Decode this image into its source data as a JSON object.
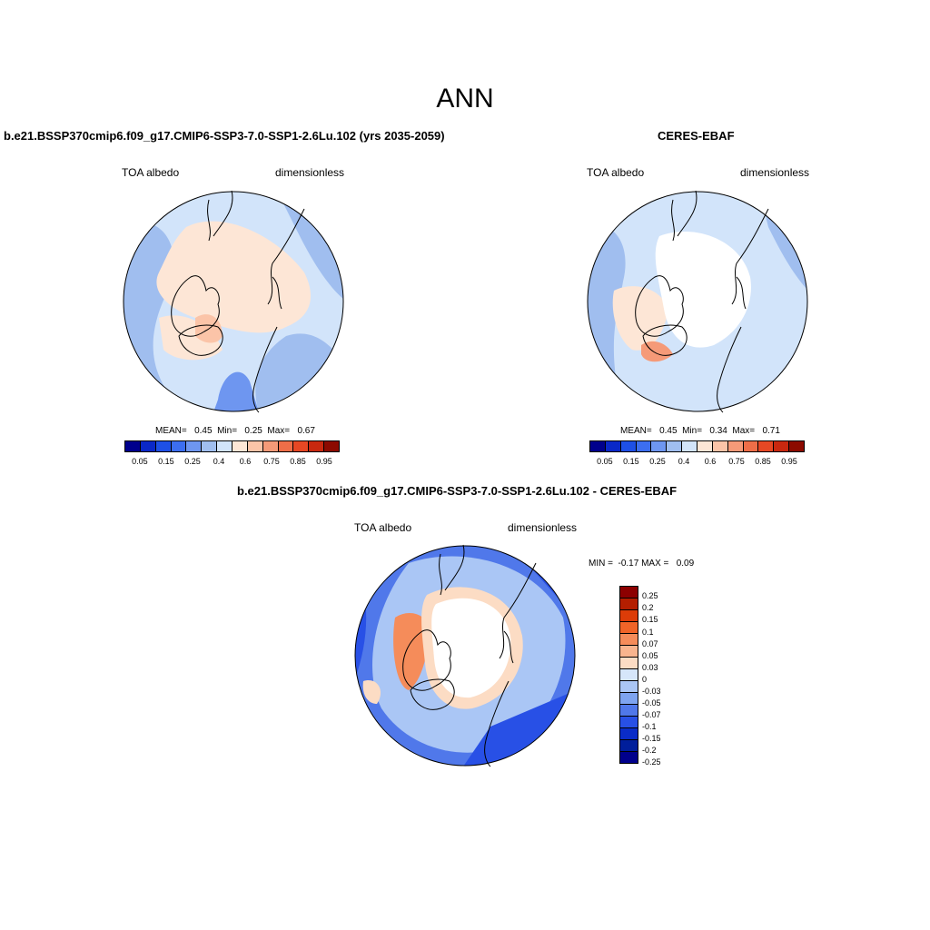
{
  "title": "ANN",
  "panels": {
    "model": {
      "title": "b.e21.BSSP370cmip6.f09_g17.CMIP6-SSP3-7.0-SSP1-2.6Lu.102 (yrs 2035-2059)",
      "variable": "TOA albedo",
      "units": "dimensionless",
      "stats": "MEAN=   0.45  Min=   0.25  Max=   0.67"
    },
    "obs": {
      "title": "CERES-EBAF",
      "variable": "TOA albedo",
      "units": "dimensionless",
      "stats": "MEAN=   0.45  Min=   0.34  Max=   0.71"
    },
    "diff": {
      "title": "b.e21.BSSP370cmip6.f09_g17.CMIP6-SSP3-7.0-SSP1-2.6Lu.102 - CERES-EBAF",
      "variable": "TOA albedo",
      "units": "dimensionless",
      "stats": "MIN =  -0.17 MAX =   0.09"
    }
  },
  "abs_colorbar": {
    "colors": [
      "#00008c",
      "#0a28c8",
      "#1e50e6",
      "#3c6ef0",
      "#6e96f0",
      "#a0beef",
      "#d2e4fa",
      "#fde6d6",
      "#fbc4a8",
      "#f59a78",
      "#ee6e48",
      "#e64824",
      "#c8280f",
      "#8c0a00"
    ],
    "ticks": [
      "0.05",
      "0.15",
      "0.25",
      "0.4",
      "0.6",
      "0.75",
      "0.85",
      "0.95"
    ]
  },
  "diff_colorbar": {
    "colors": [
      "#8c0000",
      "#b41e00",
      "#dc3c08",
      "#f06428",
      "#f58c5a",
      "#f8b48e",
      "#fcdcc4",
      "#d6e6fa",
      "#aac6f5",
      "#7ea4f0",
      "#5078ea",
      "#2850e6",
      "#0a2cc8",
      "#001e9b",
      "#00008c"
    ],
    "ticks": [
      "0.25",
      "0.2",
      "0.15",
      "0.1",
      "0.07",
      "0.05",
      "0.03",
      "0",
      "-0.03",
      "-0.05",
      "-0.07",
      "-0.1",
      "-0.15",
      "-0.2",
      "-0.25"
    ]
  }
}
